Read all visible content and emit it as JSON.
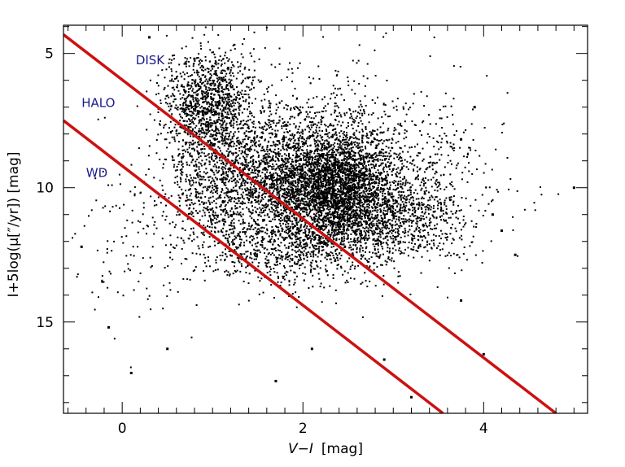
{
  "chart_data": {
    "type": "scatter",
    "title": "",
    "xlabel": {
      "prefix": "V",
      "op": "−",
      "suffix": "I",
      "unit": "[mag]"
    },
    "ylabel": {
      "text": "I+5log(μ[″/yr]) [mag]"
    },
    "xlim": [
      -0.65,
      5.15
    ],
    "ylim": [
      18.4,
      3.95
    ],
    "y_inverted": true,
    "x_major_ticks": [
      0,
      2,
      4
    ],
    "y_major_ticks": [
      5,
      10,
      15
    ],
    "grid": false,
    "region_labels": [
      {
        "id": "disk",
        "text": "DISK",
        "x": 0.15,
        "y": 5.4
      },
      {
        "id": "halo",
        "text": "HALO",
        "x": -0.45,
        "y": 7.0
      },
      {
        "id": "wd",
        "text": "WD",
        "x": -0.4,
        "y": 9.6
      }
    ],
    "divider_lines": [
      {
        "name": "disk-halo-boundary",
        "color": "#cc1111",
        "points": [
          [
            -0.65,
            4.3
          ],
          [
            4.8,
            18.4
          ]
        ]
      },
      {
        "name": "halo-wd-boundary",
        "color": "#cc1111",
        "points": [
          [
            -0.65,
            7.5
          ],
          [
            3.55,
            18.4
          ]
        ]
      }
    ],
    "point_color": "#000000",
    "point_clusters": [
      {
        "name": "disk-dense-core",
        "center": [
          2.35,
          10.0
        ],
        "spread": [
          0.33,
          1.05
        ],
        "count": 2400
      },
      {
        "name": "disk-main-body",
        "center": [
          2.05,
          9.7
        ],
        "spread": [
          0.85,
          1.55
        ],
        "count": 3200
      },
      {
        "name": "disk-red-tail",
        "center": [
          3.05,
          11.2
        ],
        "spread": [
          0.4,
          0.75
        ],
        "count": 650
      },
      {
        "name": "halo-upper-blob",
        "center": [
          0.95,
          6.9
        ],
        "spread": [
          0.24,
          1.0
        ],
        "count": 1100
      },
      {
        "name": "halo-band",
        "center": [
          1.35,
          9.8
        ],
        "spread": [
          0.5,
          1.5
        ],
        "count": 900
      },
      {
        "name": "halo-lower",
        "center": [
          1.9,
          12.3
        ],
        "spread": [
          0.5,
          0.65
        ],
        "count": 450
      },
      {
        "name": "white-dwarfs",
        "center": [
          0.1,
          12.3
        ],
        "spread": [
          0.3,
          1.4
        ],
        "count": 110
      }
    ],
    "outlier_points": [
      [
        0.3,
        4.4
      ],
      [
        0.8,
        5.2
      ],
      [
        1.7,
        17.2
      ],
      [
        3.2,
        17.8
      ],
      [
        4.0,
        16.2
      ],
      [
        4.2,
        11.6
      ],
      [
        5.0,
        10.0
      ],
      [
        4.35,
        12.5
      ],
      [
        3.75,
        14.2
      ],
      [
        0.1,
        16.9
      ],
      [
        -0.15,
        15.2
      ],
      [
        2.9,
        16.4
      ],
      [
        2.1,
        16.0
      ],
      [
        3.9,
        7.0
      ],
      [
        3.75,
        8.2
      ],
      [
        4.1,
        11.0
      ],
      [
        -0.45,
        12.2
      ],
      [
        0.5,
        16.0
      ]
    ]
  }
}
